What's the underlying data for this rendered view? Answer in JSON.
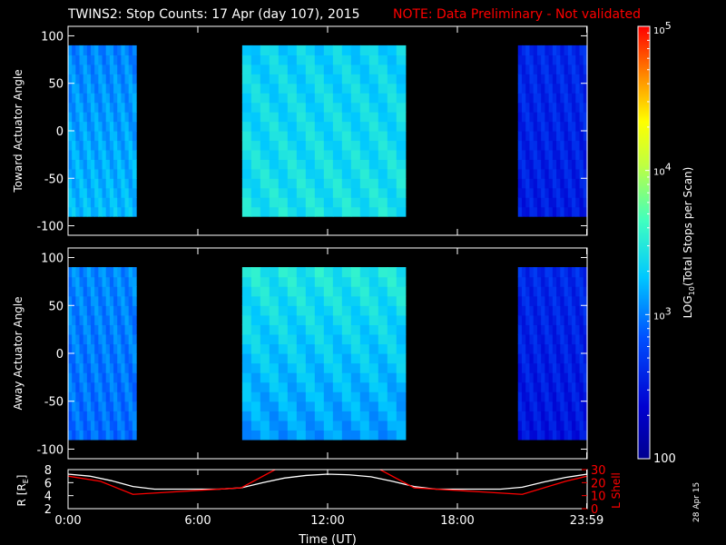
{
  "title": "TWINS2: Stop Counts: 17 Apr (day 107), 2015",
  "note": "NOTE: Data Preliminary - Not validated",
  "date_stamp": "28 Apr 15",
  "colors": {
    "background": "#000000",
    "axes": "#ffffff",
    "note": "#ff0000",
    "l_shell": "#ff0000",
    "r_trace": "#ffffff"
  },
  "chart_data": [
    {
      "type": "heatmap",
      "title": "",
      "ylabel": "Toward Actuator Angle",
      "xlim": [
        0,
        24
      ],
      "ylim": [
        -110,
        110
      ],
      "yticks": [
        {
          "v": 100,
          "label": "100"
        },
        {
          "v": 50,
          "label": "50"
        },
        {
          "v": 0,
          "label": "0"
        },
        {
          "v": -50,
          "label": "-50"
        },
        {
          "v": -100,
          "label": "-100"
        }
      ],
      "angle_range": [
        -90,
        90
      ],
      "colormap": "rainbow (blue=low, red=high)",
      "blocks": [
        {
          "start": 0.0,
          "end": 3.15,
          "base_log": 2.85,
          "high_angle_log": 3.15,
          "low_angle_log": 3.55
        },
        {
          "start": 8.05,
          "end": 15.6,
          "base_log": 3.15,
          "high_angle_log": 3.45,
          "low_angle_log": 3.65
        },
        {
          "start": 20.8,
          "end": 24.0,
          "base_log": 2.5,
          "high_angle_log": 2.7,
          "low_angle_log": 2.55
        }
      ]
    },
    {
      "type": "heatmap",
      "title": "",
      "ylabel": "Away Actuator Angle",
      "xlim": [
        0,
        24
      ],
      "ylim": [
        -110,
        110
      ],
      "yticks": [
        {
          "v": 100,
          "label": "100"
        },
        {
          "v": 50,
          "label": "50"
        },
        {
          "v": 0,
          "label": "0"
        },
        {
          "v": -50,
          "label": "-50"
        },
        {
          "v": -100,
          "label": "-100"
        }
      ],
      "angle_range": [
        -90,
        90
      ],
      "colormap": "rainbow (blue=low, red=high)",
      "blocks": [
        {
          "start": 0.0,
          "end": 3.15,
          "base_log": 2.85,
          "high_angle_log": 3.2,
          "low_angle_log": 3.0
        },
        {
          "start": 8.05,
          "end": 15.6,
          "base_log": 3.0,
          "high_angle_log": 3.85,
          "low_angle_log": 3.15
        },
        {
          "start": 20.8,
          "end": 24.0,
          "base_log": 2.45,
          "high_angle_log": 2.75,
          "low_angle_log": 2.5
        }
      ]
    },
    {
      "type": "line",
      "xlabel": "Time (UT)",
      "xlim": [
        0,
        24
      ],
      "xticks": [
        {
          "v": 0,
          "label": "0:00"
        },
        {
          "v": 6,
          "label": "6:00"
        },
        {
          "v": 12,
          "label": "12:00"
        },
        {
          "v": 18,
          "label": "18:00"
        },
        {
          "v": 23.98,
          "label": "23:59"
        }
      ],
      "left_axis": {
        "label_main": "R [R",
        "label_sub": "E",
        "label_end": "]",
        "ylim": [
          2,
          8
        ],
        "ticks": [
          {
            "v": 2,
            "label": "2"
          },
          {
            "v": 4,
            "label": "4"
          },
          {
            "v": 6,
            "label": "6"
          },
          {
            "v": 8,
            "label": "8"
          }
        ]
      },
      "right_axis": {
        "label": "L Shell",
        "ylim": [
          0,
          30
        ],
        "ticks": [
          {
            "v": 0,
            "label": "0"
          },
          {
            "v": 10,
            "label": "10"
          },
          {
            "v": 20,
            "label": "20"
          },
          {
            "v": 30,
            "label": "30"
          }
        ]
      },
      "series": [
        {
          "axis": "left",
          "color": "#ffffff",
          "x": [
            0,
            1.0,
            2.0,
            3.0,
            4.0,
            5.0,
            6.0,
            7.0,
            8.0,
            9.0,
            10.0,
            11.0,
            12.0,
            13.0,
            14.0,
            15.0,
            16.0,
            17.0,
            18.0,
            19.0,
            20.0,
            21.0,
            22.0,
            23.0,
            24.0
          ],
          "y": [
            7.3,
            7.0,
            6.3,
            5.4,
            5.0,
            5.0,
            5.0,
            5.0,
            5.2,
            6.0,
            6.7,
            7.1,
            7.3,
            7.2,
            6.9,
            6.2,
            5.4,
            5.0,
            5.0,
            5.0,
            5.0,
            5.3,
            6.1,
            6.8,
            7.3
          ]
        },
        {
          "axis": "right",
          "color": "#ff0000",
          "x": [
            0,
            1.5,
            3.0,
            5.0,
            8.0,
            9.8
          ],
          "y": [
            25,
            21,
            11,
            13,
            16,
            32
          ]
        },
        {
          "axis": "right",
          "color": "#ff0000",
          "x": [
            14.2,
            16.0,
            19.0,
            21.0,
            23.0,
            24.0
          ],
          "y": [
            32,
            16,
            13,
            11,
            21,
            25
          ]
        }
      ]
    }
  ],
  "colorbar": {
    "label_prefix": "LOG",
    "label_sub": "10",
    "label_rest": "(Total Stops per Scan)",
    "range_log": [
      2,
      5
    ],
    "ticks": [
      {
        "v": 5,
        "base": "10",
        "exp": "5"
      },
      {
        "v": 4,
        "base": "10",
        "exp": "4"
      },
      {
        "v": 3,
        "base": "10",
        "exp": "3"
      },
      {
        "v": 2,
        "base": "100",
        "exp": ""
      }
    ]
  }
}
